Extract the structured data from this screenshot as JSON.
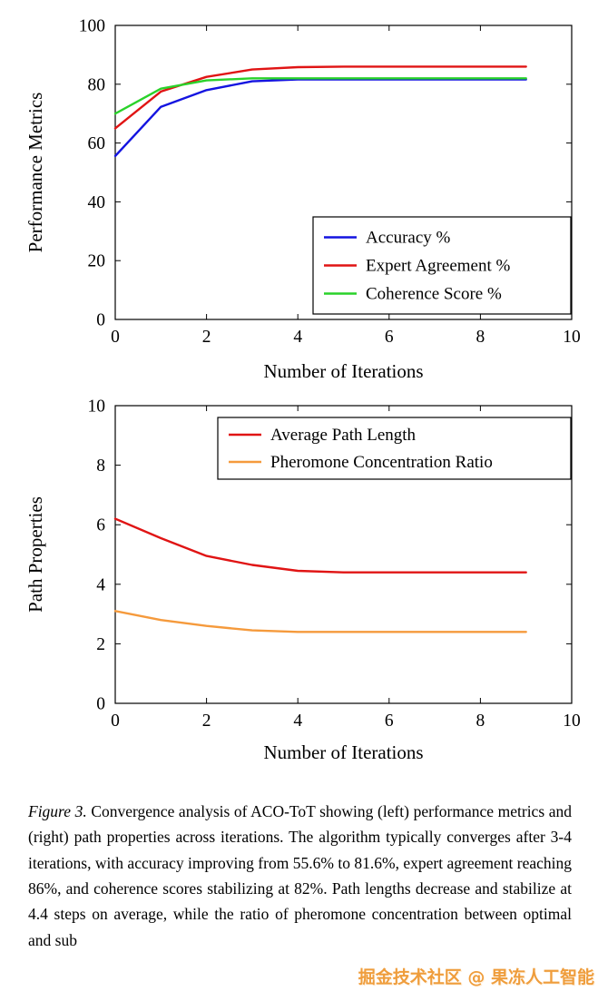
{
  "chart_data": [
    {
      "type": "line",
      "title": "",
      "xlabel": "Number of Iterations",
      "ylabel": "Performance Metrics",
      "xlim": [
        0,
        10
      ],
      "ylim": [
        0,
        100
      ],
      "xticks": [
        0,
        2,
        4,
        6,
        8,
        10
      ],
      "yticks": [
        0,
        20,
        40,
        60,
        80,
        100
      ],
      "grid": false,
      "legend_position": "south east inside",
      "x": [
        0,
        1,
        2,
        3,
        4,
        5,
        6,
        7,
        8,
        9
      ],
      "series": [
        {
          "name": "Accuracy %",
          "color": "#1414e0",
          "values": [
            55.6,
            72.3,
            78.0,
            81.0,
            81.6,
            81.6,
            81.6,
            81.6,
            81.6,
            81.6
          ]
        },
        {
          "name": "Expert Agreement %",
          "color": "#e01414",
          "values": [
            65.0,
            77.5,
            82.5,
            85.0,
            85.8,
            86.0,
            86.0,
            86.0,
            86.0,
            86.0
          ]
        },
        {
          "name": "Coherence Score %",
          "color": "#2ad22a",
          "values": [
            70.0,
            78.5,
            81.3,
            82.0,
            82.0,
            82.0,
            82.0,
            82.0,
            82.0,
            82.0
          ]
        }
      ]
    },
    {
      "type": "line",
      "title": "",
      "xlabel": "Number of Iterations",
      "ylabel": "Path Properties",
      "xlim": [
        0,
        10
      ],
      "ylim": [
        0,
        10
      ],
      "xticks": [
        0,
        2,
        4,
        6,
        8,
        10
      ],
      "yticks": [
        0,
        2,
        4,
        6,
        8,
        10
      ],
      "grid": false,
      "legend_position": "north east inside",
      "x": [
        0,
        1,
        2,
        3,
        4,
        5,
        6,
        7,
        8,
        9
      ],
      "series": [
        {
          "name": "Average Path Length",
          "color": "#e01414",
          "values": [
            6.2,
            5.55,
            4.95,
            4.65,
            4.45,
            4.4,
            4.4,
            4.4,
            4.4,
            4.4
          ]
        },
        {
          "name": "Pheromone Concentration Ratio",
          "color": "#f59a3c",
          "values": [
            3.1,
            2.8,
            2.6,
            2.45,
            2.4,
            2.4,
            2.4,
            2.4,
            2.4,
            2.4
          ]
        }
      ]
    }
  ],
  "caption": {
    "label": "Figure 3.",
    "text": "Convergence analysis of ACO-ToT showing (left) performance metrics and (right) path properties across iterations. The algorithm typically converges after 3-4 iterations, with accuracy improving from 55.6% to 81.6%, expert agreement reaching 86%, and coherence scores stabilizing at 82%. Path lengths decrease and stabilize at 4.4 steps on average, while the ratio of pheromone concentration between optimal and sub"
  },
  "watermark": {
    "text": "掘金技术社区 @ 果冻人工智能",
    "color": "#ef9d3c"
  }
}
